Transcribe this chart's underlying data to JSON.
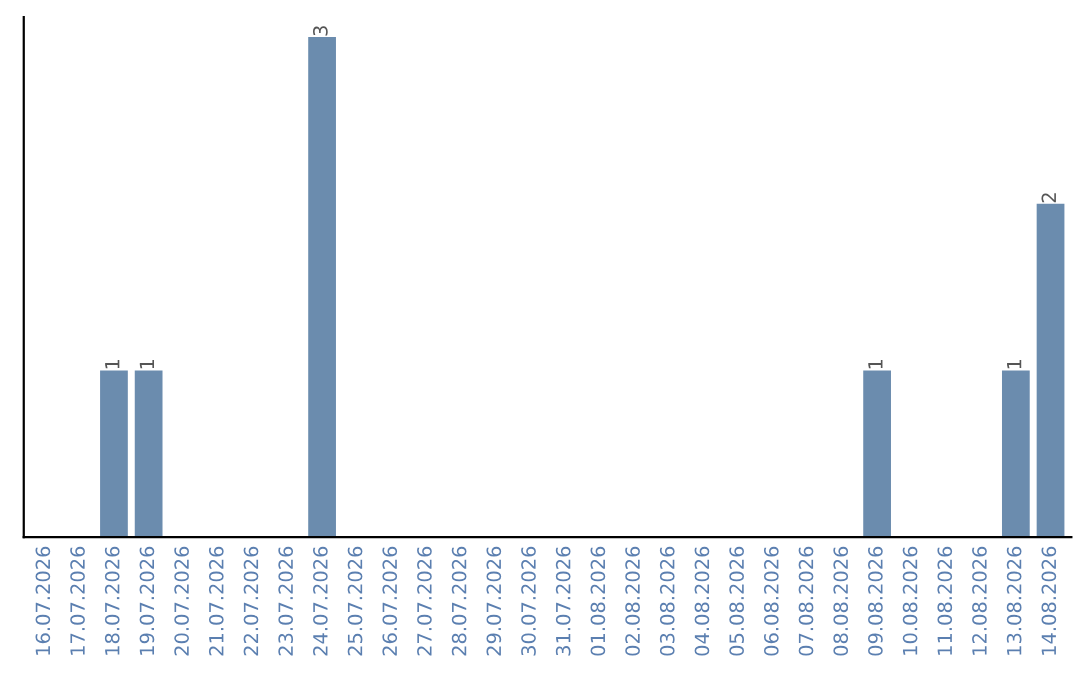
{
  "chart_data": {
    "type": "bar",
    "categories": [
      "16.07.2026",
      "17.07.2026",
      "18.07.2026",
      "19.07.2026",
      "20.07.2026",
      "21.07.2026",
      "22.07.2026",
      "23.07.2026",
      "24.07.2026",
      "25.07.2026",
      "26.07.2026",
      "27.07.2026",
      "28.07.2026",
      "29.07.2026",
      "30.07.2026",
      "31.07.2026",
      "01.08.2026",
      "02.08.2026",
      "03.08.2026",
      "04.08.2026",
      "05.08.2026",
      "06.08.2026",
      "07.08.2026",
      "08.08.2026",
      "09.08.2026",
      "10.08.2026",
      "11.08.2026",
      "12.08.2026",
      "13.08.2026",
      "14.08.2026"
    ],
    "values": [
      0,
      0,
      1,
      1,
      0,
      0,
      0,
      0,
      3,
      0,
      0,
      0,
      0,
      0,
      0,
      0,
      0,
      0,
      0,
      0,
      0,
      0,
      0,
      0,
      1,
      0,
      0,
      0,
      1,
      2
    ],
    "value_labels": [
      null,
      null,
      "1",
      "1",
      null,
      null,
      null,
      null,
      "3",
      null,
      null,
      null,
      null,
      null,
      null,
      null,
      null,
      null,
      null,
      null,
      null,
      null,
      null,
      null,
      "1",
      null,
      null,
      null,
      "1",
      "2"
    ],
    "color": "#6b8cae",
    "tick_labels": "x",
    "grid": false,
    "legend": false
  }
}
